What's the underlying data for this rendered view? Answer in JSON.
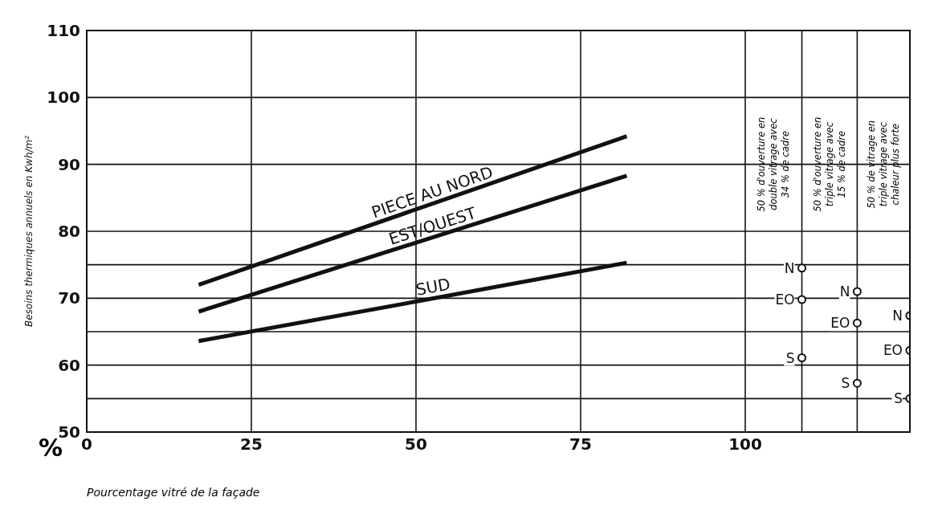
{
  "chart_data": {
    "type": "line",
    "xlabel": "Pourcentage vitré de la façade",
    "ylabel": "Besoins thermiques annuels en Kwh/m²",
    "xlim": [
      0,
      125
    ],
    "ylim": [
      50,
      110
    ],
    "xticks": [
      0,
      25,
      50,
      75,
      100,
      {
        "value": 108.6,
        "label": null
      },
      {
        "value": 117,
        "label": null
      }
    ],
    "yticks": [
      50,
      {
        "value": 55,
        "label": null
      },
      60,
      {
        "value": 65,
        "label": null
      },
      70,
      {
        "value": 75,
        "label": null
      },
      80,
      90,
      100,
      110
    ],
    "grid": true,
    "series": [
      {
        "name": "PIECE AU NORD",
        "marker": "none",
        "color": "#111111",
        "x": [
          17,
          82
        ],
        "values": [
          72,
          94.2
        ]
      },
      {
        "name": "EST/OUEST",
        "marker": "none",
        "color": "#111111",
        "x": [
          17,
          82
        ],
        "values": [
          68,
          88.3
        ]
      },
      {
        "name": "SUD",
        "marker": "none",
        "color": "#111111",
        "x": [
          17,
          50,
          82
        ],
        "values": [
          63.6,
          69.5,
          75.3
        ]
      },
      {
        "name": "N",
        "type": "scatter",
        "marker": "circle",
        "color": "#111111",
        "x": [
          108.6,
          117,
          125
        ],
        "values": [
          74.5,
          71,
          67.4
        ]
      },
      {
        "name": "EO",
        "type": "scatter",
        "marker": "circle",
        "color": "#111111",
        "x": [
          108.6,
          117,
          125
        ],
        "values": [
          69.8,
          66.3,
          62.2
        ]
      },
      {
        "name": "S",
        "type": "scatter",
        "marker": "circle",
        "color": "#111111",
        "x": [
          108.6,
          117,
          125
        ],
        "values": [
          61.1,
          57.3,
          55
        ]
      }
    ],
    "annotations": [
      "%",
      "50 % d'ouverture en\ndouble vitrage avec\n34 % de cadre",
      "50 % d'ouverture en\ntriple vitrage avec\n15 % de cadre",
      "50 % de vitrage en\ntriple vitrage avec\nchaleur plus forte"
    ]
  }
}
